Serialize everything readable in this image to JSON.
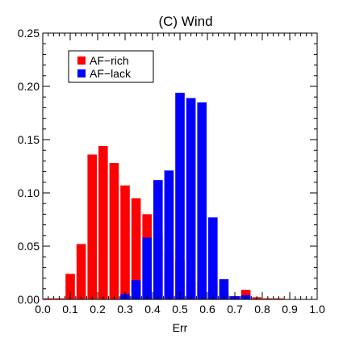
{
  "chart_data": {
    "type": "bar",
    "title": "(C) Wind",
    "xlabel": "Err",
    "ylabel": "",
    "xlim": [
      0.0,
      1.0
    ],
    "ylim": [
      0.0,
      0.25
    ],
    "bin_width": 0.04,
    "bin_centers": [
      0.02,
      0.06,
      0.1,
      0.14,
      0.18,
      0.22,
      0.26,
      0.3,
      0.34,
      0.38,
      0.42,
      0.46,
      0.5,
      0.54,
      0.58,
      0.62,
      0.66,
      0.7,
      0.74,
      0.78,
      0.82,
      0.86,
      0.9,
      0.94,
      0.98
    ],
    "x_ticks": [
      "0.0",
      "0.1",
      "0.2",
      "0.3",
      "0.4",
      "0.5",
      "0.6",
      "0.7",
      "0.8",
      "0.9",
      "1.0"
    ],
    "y_ticks": [
      "0.00",
      "0.05",
      "0.10",
      "0.15",
      "0.20",
      "0.25"
    ],
    "legend_position": "top-left",
    "grid": false,
    "series": [
      {
        "name": "AF−rich",
        "color": "#ff0000",
        "values": [
          0.001,
          0.001,
          0.024,
          0.052,
          0.136,
          0.144,
          0.128,
          0.107,
          0.095,
          0.08,
          0.06,
          0.043,
          0.037,
          0.016,
          0.017,
          0.014,
          0.005,
          0.003,
          0.009,
          0.002,
          0.001,
          0.001,
          0.0,
          0.0,
          0.0
        ]
      },
      {
        "name": "AF−lack",
        "color": "#0000ff",
        "values": [
          0.0,
          0.0,
          0.0,
          0.0,
          0.0,
          0.0,
          0.0,
          0.005,
          0.018,
          0.058,
          0.112,
          0.121,
          0.194,
          0.189,
          0.185,
          0.077,
          0.019,
          0.003,
          0.004,
          0.0,
          0.0,
          0.0,
          0.0,
          0.0,
          0.0
        ]
      }
    ]
  }
}
